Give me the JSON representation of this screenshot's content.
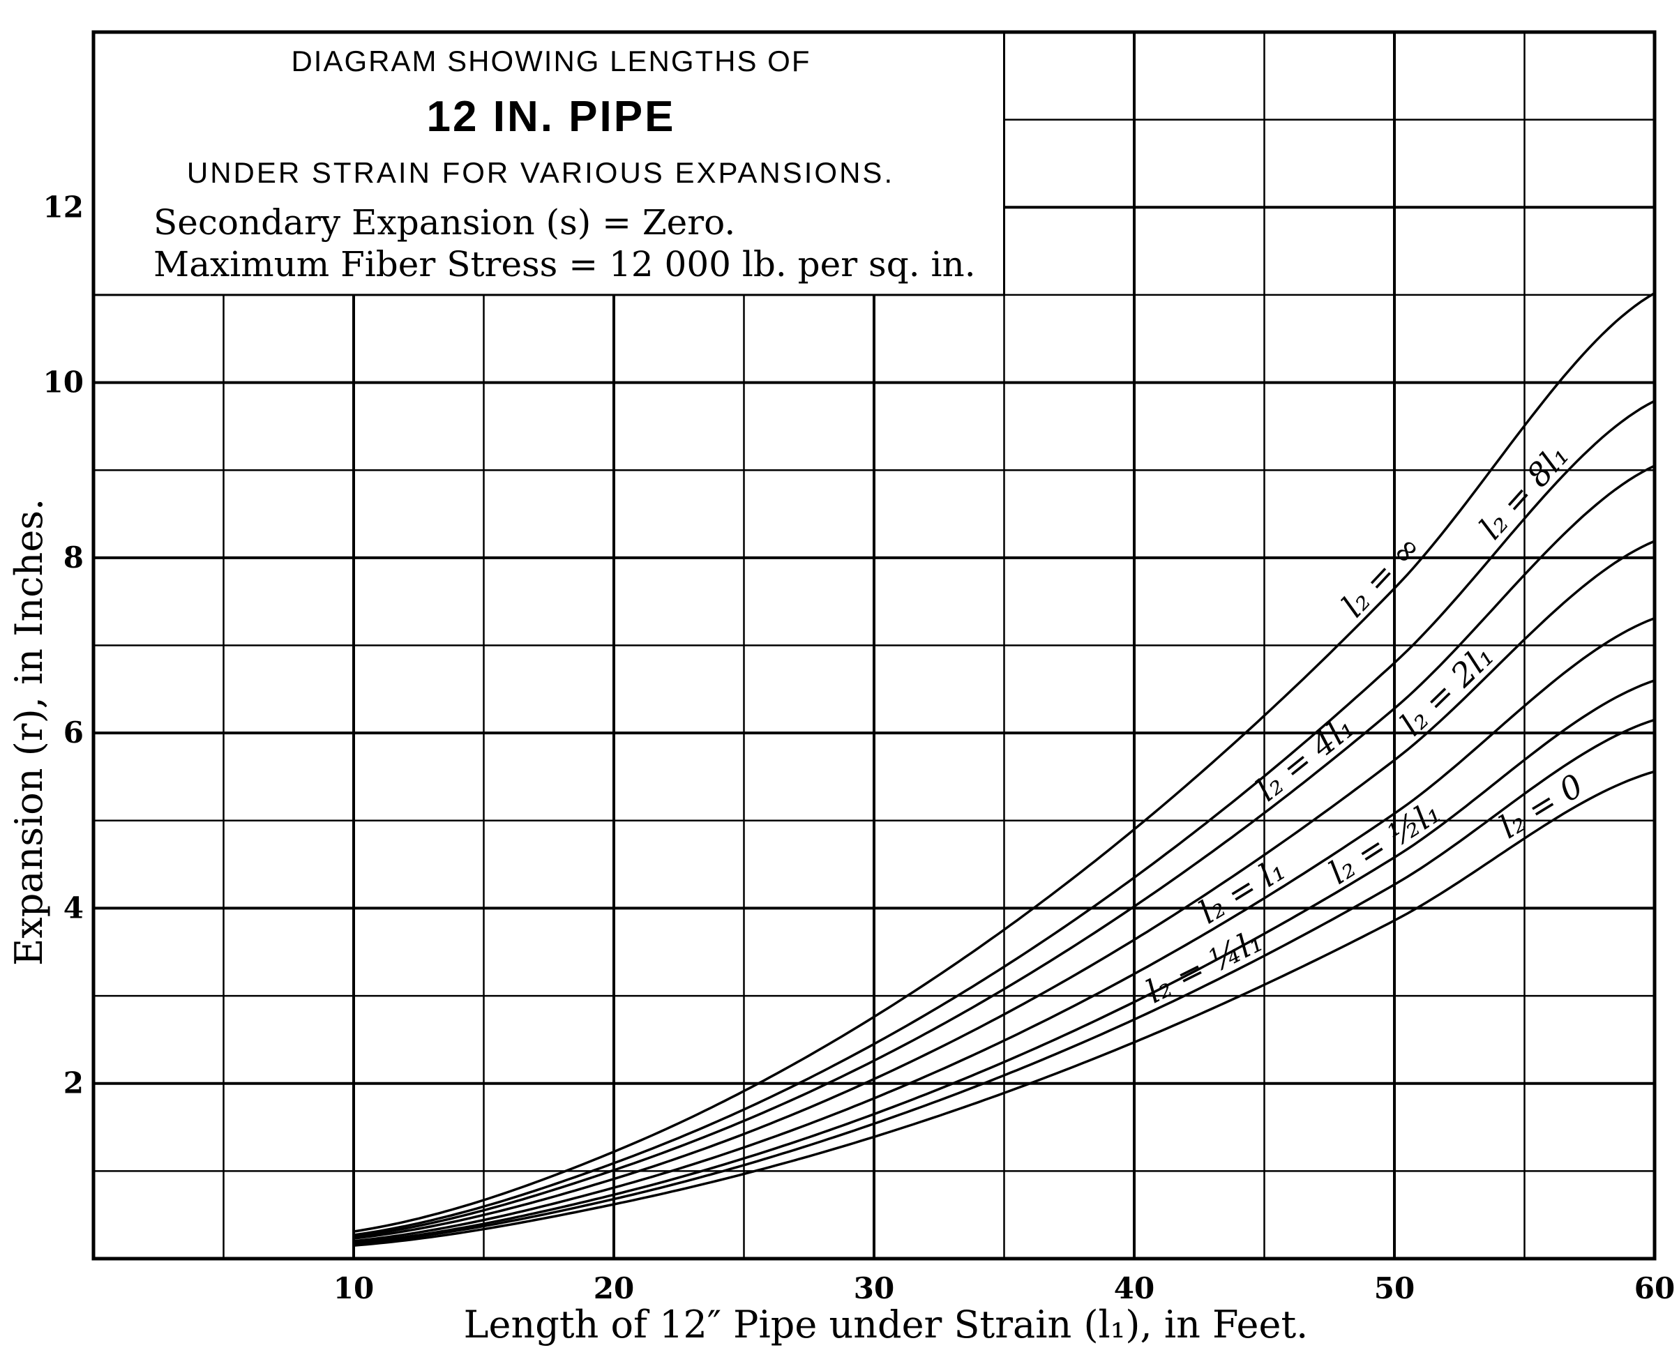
{
  "chart_data": {
    "type": "line",
    "title_lines": [
      "DIAGRAM SHOWING LENGTHS OF",
      "12 IN. PIPE",
      "UNDER STRAIN FOR VARIOUS EXPANSIONS.",
      "Secondary Expansion (s) = Zero.",
      "Maximum Fiber Stress = 12 000 lb. per sq. in."
    ],
    "xlabel": "Length of 12″ Pipe under Strain (l₁), in Feet.",
    "ylabel": "Expansion (r), in Inches.",
    "xlim": [
      0,
      60
    ],
    "ylim": [
      0,
      14
    ],
    "x_ticks": [
      "10",
      "20",
      "30",
      "40",
      "50",
      "60"
    ],
    "y_ticks": [
      "2",
      "4",
      "6",
      "8",
      "10",
      "12"
    ],
    "grid": true,
    "x": [
      10,
      20,
      30,
      40,
      50,
      60
    ],
    "series": [
      {
        "name": "l₂ = ∞",
        "values": [
          0.31,
          1.22,
          2.76,
          4.9,
          7.65,
          11.02
        ]
      },
      {
        "name": "l₂ = 8l₁",
        "values": [
          0.27,
          1.09,
          2.45,
          4.35,
          6.8,
          9.79
        ]
      },
      {
        "name": "l₂ = 4l₁",
        "values": [
          0.25,
          1.01,
          2.26,
          4.02,
          6.28,
          9.05
        ]
      },
      {
        "name": "l₂ = 2l₁",
        "values": [
          0.23,
          0.91,
          2.05,
          3.64,
          5.69,
          8.19
        ]
      },
      {
        "name": "l₂ = l₁",
        "values": [
          0.2,
          0.81,
          1.83,
          3.25,
          5.08,
          7.31
        ]
      },
      {
        "name": "l₂ = ½l₁",
        "values": [
          0.18,
          0.73,
          1.65,
          2.93,
          4.58,
          6.6
        ]
      },
      {
        "name": "l₂ = ¼l₁",
        "values": [
          0.17,
          0.68,
          1.54,
          2.73,
          4.27,
          6.15
        ]
      },
      {
        "name": "l₂ = 0",
        "values": [
          0.15,
          0.62,
          1.39,
          2.47,
          3.86,
          5.56
        ]
      }
    ],
    "line_color": "#000000",
    "background": "#ffffff"
  }
}
